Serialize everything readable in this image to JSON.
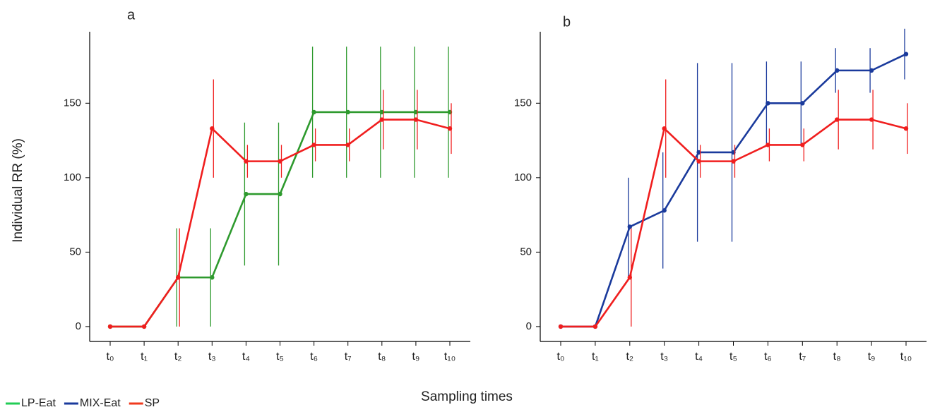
{
  "chart_data": [
    {
      "type": "line",
      "title": "a",
      "categories": [
        "t₀",
        "t₁",
        "t₂",
        "t₃",
        "t₄",
        "t₅",
        "t₆",
        "t₇",
        "t₈",
        "t₉",
        "t₁₀"
      ],
      "ylim": [
        -10,
        198
      ],
      "yticks": [
        0,
        50,
        100,
        150
      ],
      "series": [
        {
          "name": "LP-Eat",
          "color": "#2e9a2e",
          "values": [
            0,
            0,
            33,
            33,
            89,
            89,
            144,
            144,
            144,
            144,
            144
          ],
          "errors": [
            0,
            0,
            33,
            33,
            48,
            48,
            44,
            44,
            44,
            44,
            44
          ]
        },
        {
          "name": "SP",
          "color": "#f01e1e",
          "values": [
            0,
            0,
            33,
            133,
            111,
            111,
            122,
            122,
            139,
            139,
            133
          ],
          "errors": [
            0,
            0,
            33,
            33,
            11,
            11,
            11,
            11,
            20,
            20,
            17
          ]
        }
      ]
    },
    {
      "type": "line",
      "title": "b",
      "categories": [
        "t₀",
        "t₁",
        "t₂",
        "t₃",
        "t₄",
        "t₅",
        "t₆",
        "t₇",
        "t₈",
        "t₉",
        "t₁₀"
      ],
      "ylim": [
        -10,
        198
      ],
      "yticks": [
        0,
        50,
        100,
        150
      ],
      "series": [
        {
          "name": "MIX-Eat",
          "color": "#1a3a9c",
          "values": [
            0,
            0,
            67,
            78,
            117,
            117,
            150,
            150,
            172,
            172,
            183
          ],
          "errors": [
            0,
            0,
            33,
            39,
            60,
            60,
            28,
            28,
            15,
            15,
            17
          ]
        },
        {
          "name": "SP",
          "color": "#f01e1e",
          "values": [
            0,
            0,
            33,
            133,
            111,
            111,
            122,
            122,
            139,
            139,
            133
          ],
          "errors": [
            0,
            0,
            33,
            33,
            11,
            11,
            11,
            11,
            20,
            20,
            17
          ]
        }
      ]
    }
  ],
  "ylabel": "Individual RR (%)",
  "xlabel": "Sampling times",
  "legend": [
    {
      "name": "LP-Eat",
      "color": "#22cc55"
    },
    {
      "name": "MIX-Eat",
      "color": "#1a3a9c"
    },
    {
      "name": "SP",
      "color": "#f03a1e"
    }
  ]
}
